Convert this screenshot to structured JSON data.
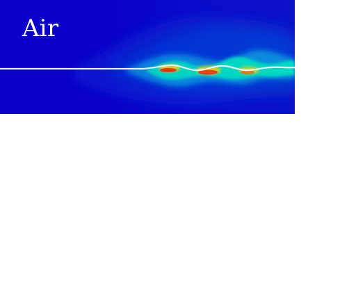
{
  "figure": {
    "label": "Air",
    "colors": {
      "background": "#ffffff",
      "field_low": "#0a00c8",
      "field_mid_low": "#0050d8",
      "field_mid": "#0aa0e0",
      "field_high": "#00e0c0",
      "field_peak": "#ffd200",
      "field_max": "#ff2a00",
      "interface": "#ffffff"
    }
  }
}
